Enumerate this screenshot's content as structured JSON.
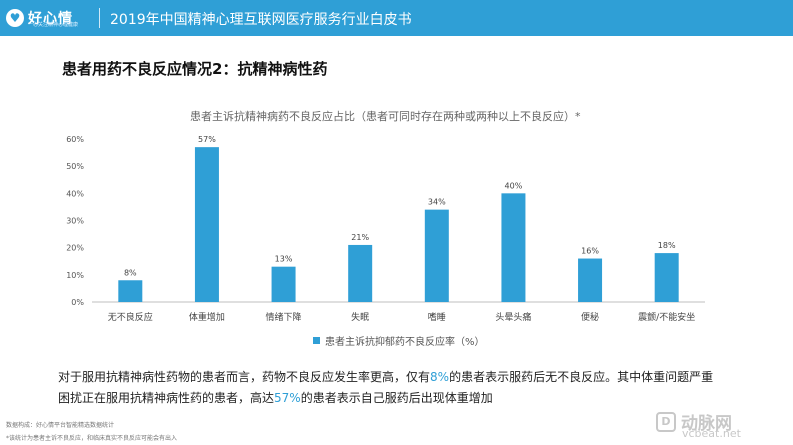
{
  "header": {
    "logo_text": "好心情",
    "logo_mark": "♥",
    "logo_sub": "一心关注精神心理健康",
    "title": "2019年中国精神心理互联网医疗服务行业白皮书"
  },
  "section_title": "患者用药不良反应情况2：抗精神病性药",
  "summary": {
    "part1": "对于服用抗精神病性药物的患者而言，药物不良反应发生率更高，仅有",
    "hl1": "8%",
    "part2": "的患者表示服药后无不良反应。其中体重问题严重困扰正在服用抗精神病性药的患者，高达",
    "hl2": "57%",
    "part3": "的患者表示自己服药后出现体重增加"
  },
  "notes": {
    "source": "数据构成：好心情平台智能精选数据统计",
    "footnote": "*该统计为患者主诉不良反应，和临床真实不良反应可能会有出入"
  },
  "watermark": {
    "mark": "D",
    "name": "动脉网",
    "url": "vcbeat.net"
  },
  "colors": {
    "brand": "#2f9fd6",
    "bar": "#2f9fd6"
  },
  "chart_data": {
    "type": "bar",
    "title": "患者主诉抗精神病药不良反应占比（患者可同时存在两种或两种以上不良反应）*",
    "categories": [
      "无不良反应",
      "体重增加",
      "情绪下降",
      "失眠",
      "嗜睡",
      "头晕头痛",
      "便秘",
      "震颤/不能安坐"
    ],
    "series": [
      {
        "name": "患者主诉抗抑郁药不良反应率（%）",
        "values": [
          8,
          57,
          13,
          21,
          34,
          40,
          16,
          18
        ]
      }
    ],
    "data_labels": [
      "8%",
      "57%",
      "13%",
      "21%",
      "34%",
      "40%",
      "16%",
      "18%"
    ],
    "y_ticks": [
      "0%",
      "10%",
      "20%",
      "30%",
      "40%",
      "50%",
      "60%"
    ],
    "ylim": [
      0,
      60
    ],
    "grid": false,
    "legend_position": "bottom"
  }
}
